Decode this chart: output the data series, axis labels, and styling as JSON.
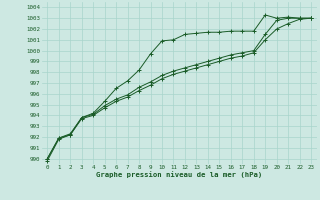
{
  "title": "Graphe pression niveau de la mer (hPa)",
  "bg_color": "#cde8e2",
  "grid_color": "#a8d5cc",
  "line_color": "#1a5c28",
  "xlim": [
    -0.5,
    23.5
  ],
  "ylim": [
    989.5,
    1004.5
  ],
  "yticks": [
    990,
    991,
    992,
    993,
    994,
    995,
    996,
    997,
    998,
    999,
    1000,
    1001,
    1002,
    1003,
    1004
  ],
  "xticks": [
    0,
    1,
    2,
    3,
    4,
    5,
    6,
    7,
    8,
    9,
    10,
    11,
    12,
    13,
    14,
    15,
    16,
    17,
    18,
    19,
    20,
    21,
    22,
    23
  ],
  "series1_x": [
    0,
    1,
    2,
    3,
    4,
    5,
    6,
    7,
    8,
    9,
    10,
    11,
    12,
    13,
    14,
    15,
    16,
    17,
    18,
    19,
    20,
    21,
    22,
    23
  ],
  "series1_y": [
    989.8,
    991.8,
    992.2,
    993.8,
    994.2,
    995.3,
    996.5,
    997.2,
    998.2,
    999.7,
    1000.9,
    1001.0,
    1001.5,
    1001.6,
    1001.7,
    1001.7,
    1001.8,
    1001.8,
    1001.8,
    1003.3,
    1003.0,
    1003.1,
    1003.0,
    1003.0
  ],
  "series2_x": [
    0,
    1,
    2,
    3,
    4,
    5,
    6,
    7,
    8,
    9,
    10,
    11,
    12,
    13,
    14,
    15,
    16,
    17,
    18,
    19,
    20,
    21,
    22,
    23
  ],
  "series2_y": [
    990.0,
    991.9,
    992.3,
    993.8,
    994.1,
    994.9,
    995.5,
    995.9,
    996.6,
    997.1,
    997.7,
    998.1,
    998.4,
    998.7,
    999.0,
    999.3,
    999.6,
    999.8,
    1000.0,
    1001.5,
    1002.8,
    1003.0,
    1003.0,
    1003.0
  ],
  "series3_x": [
    0,
    1,
    2,
    3,
    4,
    5,
    6,
    7,
    8,
    9,
    10,
    11,
    12,
    13,
    14,
    15,
    16,
    17,
    18,
    19,
    20,
    21,
    22,
    23
  ],
  "series3_y": [
    990.0,
    991.9,
    992.2,
    993.7,
    994.0,
    994.7,
    995.3,
    995.7,
    996.3,
    996.8,
    997.4,
    997.8,
    998.1,
    998.4,
    998.7,
    999.0,
    999.3,
    999.5,
    999.8,
    1001.0,
    1002.0,
    1002.5,
    1002.9,
    1003.0
  ]
}
